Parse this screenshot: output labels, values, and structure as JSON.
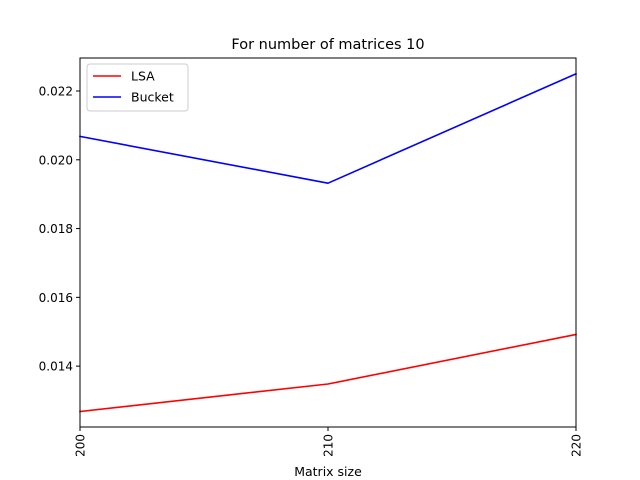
{
  "chart_data": {
    "type": "line",
    "title": "For number of matrices 10",
    "xlabel": "Matrix size",
    "ylabel": "",
    "x": [
      200,
      210,
      220
    ],
    "x_tick_labels": [
      "200",
      "210",
      "220"
    ],
    "xlim": [
      200,
      220
    ],
    "ylim": [
      0.01223,
      0.02296
    ],
    "y_ticks": [
      0.014,
      0.016,
      0.018,
      0.02,
      0.022
    ],
    "y_tick_labels": [
      "0.014",
      "0.016",
      "0.018",
      "0.020",
      "0.022"
    ],
    "grid": false,
    "legend_position": "top-left",
    "series": [
      {
        "name": "LSA",
        "color": "#ff0000",
        "values": [
          0.01268,
          0.01348,
          0.01492
        ]
      },
      {
        "name": "Bucket",
        "color": "#0000ff",
        "values": [
          0.02068,
          0.01932,
          0.0225
        ]
      }
    ]
  }
}
